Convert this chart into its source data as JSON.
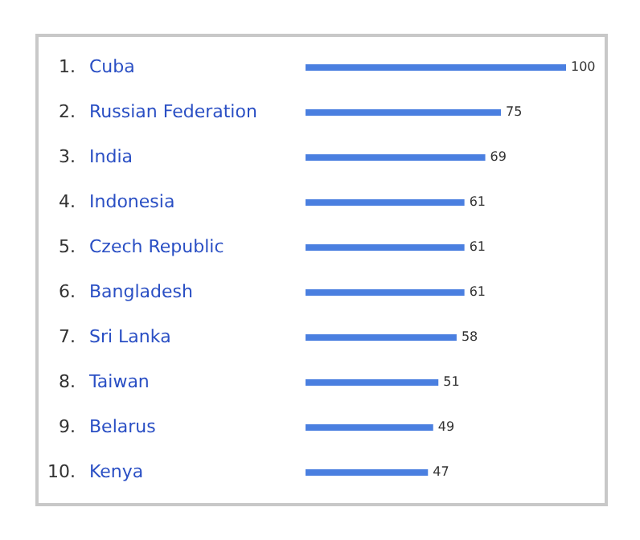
{
  "chart_data": {
    "type": "bar",
    "orientation": "horizontal",
    "categories": [
      "Cuba",
      "Russian Federation",
      "India",
      "Indonesia",
      "Czech Republic",
      "Bangladesh",
      "Sri Lanka",
      "Taiwan",
      "Belarus",
      "Kenya"
    ],
    "values": [
      100,
      75,
      69,
      61,
      61,
      61,
      58,
      51,
      49,
      47
    ],
    "color": "#4a7fe0",
    "xlim": [
      0,
      100
    ],
    "tick_labels": "y",
    "data_labels": true,
    "annotations": [
      "1.",
      "2.",
      "3.",
      "4.",
      "5.",
      "6.",
      "7.",
      "8.",
      "9.",
      "10."
    ]
  }
}
